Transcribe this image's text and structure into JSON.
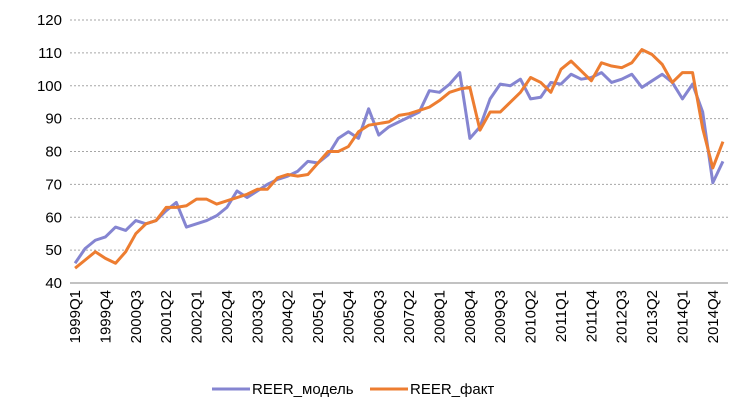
{
  "chart_data": {
    "type": "line",
    "categories": [
      "1999Q1",
      null,
      null,
      "1999Q4",
      null,
      null,
      "2000Q3",
      null,
      null,
      "2001Q2",
      null,
      null,
      "2002Q1",
      null,
      null,
      "2002Q4",
      null,
      null,
      "2003Q3",
      null,
      null,
      "2004Q2",
      null,
      null,
      "2005Q1",
      null,
      null,
      "2005Q4",
      null,
      null,
      "2006Q3",
      null,
      null,
      "2007Q2",
      null,
      null,
      "2008Q1",
      null,
      null,
      "2008Q4",
      null,
      null,
      "2009Q3",
      null,
      null,
      "2010Q2",
      null,
      null,
      "2011Q1",
      null,
      null,
      "2011Q4",
      null,
      null,
      "2012Q3",
      null,
      null,
      "2013Q2",
      null,
      null,
      "2014Q1",
      null,
      null,
      "2014Q4",
      null
    ],
    "series": [
      {
        "name": "REER_модель",
        "color": "#8585d1",
        "values": [
          46,
          50.5,
          53,
          54,
          57,
          56,
          59,
          58,
          59,
          62,
          64.5,
          57,
          58,
          59,
          60.5,
          63,
          68,
          66,
          68,
          70,
          71.5,
          72.5,
          74,
          77,
          76.5,
          79,
          84,
          86,
          84,
          93,
          85,
          87.5,
          89,
          90.5,
          92,
          98.5,
          98,
          100.5,
          104,
          84,
          87.5,
          96,
          100.5,
          100,
          102,
          96,
          96.5,
          101,
          100.5,
          103.5,
          102,
          102.5,
          104,
          101,
          102,
          103.5,
          99.5,
          101.5,
          103.5,
          101,
          96,
          100.5,
          92,
          70.5,
          77
        ]
      },
      {
        "name": "REER_факт",
        "color": "#ed7d31",
        "values": [
          44.5,
          47,
          49.5,
          47.5,
          46,
          49.5,
          55,
          58,
          59,
          63,
          63,
          63.5,
          65.5,
          65.5,
          64,
          65,
          66,
          67,
          68.5,
          68.5,
          72,
          73,
          72.5,
          73,
          76.5,
          80,
          80,
          81.5,
          86,
          88,
          88.5,
          89,
          91,
          91.5,
          92.5,
          93.5,
          95.5,
          98,
          99,
          99.5,
          86.5,
          92,
          92,
          95,
          98,
          102.5,
          101,
          98,
          105,
          107.5,
          104.5,
          101.5,
          107,
          106,
          105.5,
          107,
          111,
          109.5,
          106.5,
          101,
          104,
          104,
          87,
          75,
          83
        ]
      }
    ],
    "ylim": [
      40,
      120
    ],
    "yticks": [
      40,
      50,
      60,
      70,
      80,
      90,
      100,
      110,
      120
    ],
    "grid": true,
    "legend": "bottom"
  }
}
